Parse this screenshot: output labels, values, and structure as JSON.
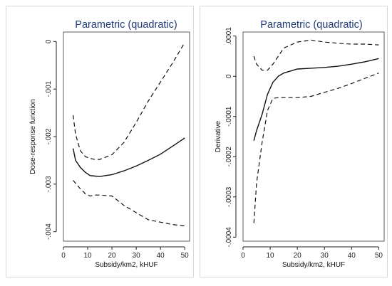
{
  "chart_data": [
    {
      "type": "line",
      "title": "Parametric (quadratic)",
      "xlabel": "Subsidy/km2, kHUF",
      "ylabel": "Dose-response function",
      "xlim": [
        0,
        52
      ],
      "ylim": [
        -0.0042,
        0.0002
      ],
      "xticks": [
        0,
        10,
        20,
        30,
        40,
        50
      ],
      "yticks": [
        0,
        -0.001,
        -0.002,
        -0.003,
        -0.004
      ],
      "yticklabels": [
        "0",
        "-.001",
        "-.002",
        "-.003",
        "-.004"
      ],
      "x": [
        4,
        5,
        7,
        9,
        11,
        13,
        15,
        20,
        25,
        30,
        35,
        40,
        45,
        50
      ],
      "series": [
        {
          "style": "dashed",
          "values": [
            -0.00155,
            -0.00195,
            -0.0023,
            -0.00242,
            -0.00246,
            -0.00248,
            -0.00248,
            -0.00238,
            -0.00212,
            -0.0017,
            -0.00125,
            -0.00085,
            -0.00045,
            -2e-05
          ]
        },
        {
          "style": "solid",
          "values": [
            -0.00225,
            -0.0025,
            -0.00265,
            -0.00275,
            -0.00282,
            -0.00283,
            -0.00284,
            -0.0028,
            -0.00272,
            -0.00262,
            -0.0025,
            -0.00237,
            -0.0022,
            -0.00203
          ]
        },
        {
          "style": "dashed",
          "values": [
            -0.00292,
            -0.00298,
            -0.0031,
            -0.0032,
            -0.00325,
            -0.00323,
            -0.00323,
            -0.00325,
            -0.00345,
            -0.0036,
            -0.00375,
            -0.0038,
            -0.00385,
            -0.00388
          ]
        }
      ]
    },
    {
      "type": "line",
      "title": "Parametric (quadratic)",
      "xlabel": "Subsidy/km2, kHUF",
      "ylabel": "Derivative",
      "xlim": [
        0,
        52
      ],
      "ylim": [
        -0.00041,
        0.00011
      ],
      "xticks": [
        0,
        10,
        20,
        30,
        40,
        50
      ],
      "yticks": [
        0.0001,
        0,
        -0.0001,
        -0.0002,
        -0.0003,
        -0.0004
      ],
      "yticklabels": [
        ".0001",
        "0",
        "-.0001",
        "-.0002",
        "-.0003",
        "-.0004"
      ],
      "x": [
        4,
        5,
        7,
        9,
        11,
        13,
        15,
        20,
        25,
        30,
        35,
        40,
        45,
        50
      ],
      "series": [
        {
          "style": "dashed",
          "values": [
            5e-05,
            3e-05,
            1.5e-05,
            1.5e-05,
            3e-05,
            5e-05,
            7e-05,
            8.5e-05,
            9e-05,
            8.5e-05,
            8.2e-05,
            8e-05,
            8e-05,
            7.8e-05
          ]
        },
        {
          "style": "solid",
          "values": [
            -0.00016,
            -0.000135,
            -9.5e-05,
            -4.5e-05,
            -1.5e-05,
            0.0,
            8e-06,
            1.8e-05,
            2e-05,
            2.2e-05,
            2.5e-05,
            3e-05,
            3.6e-05,
            4.4e-05
          ]
        },
        {
          "style": "dashed",
          "values": [
            -0.000365,
            -0.000265,
            -0.000165,
            -8.5e-05,
            -5.5e-05,
            -5.3e-05,
            -5.3e-05,
            -5.3e-05,
            -5e-05,
            -4e-05,
            -3e-05,
            -1.8e-05,
            -5e-06,
            8e-06
          ]
        }
      ]
    }
  ]
}
